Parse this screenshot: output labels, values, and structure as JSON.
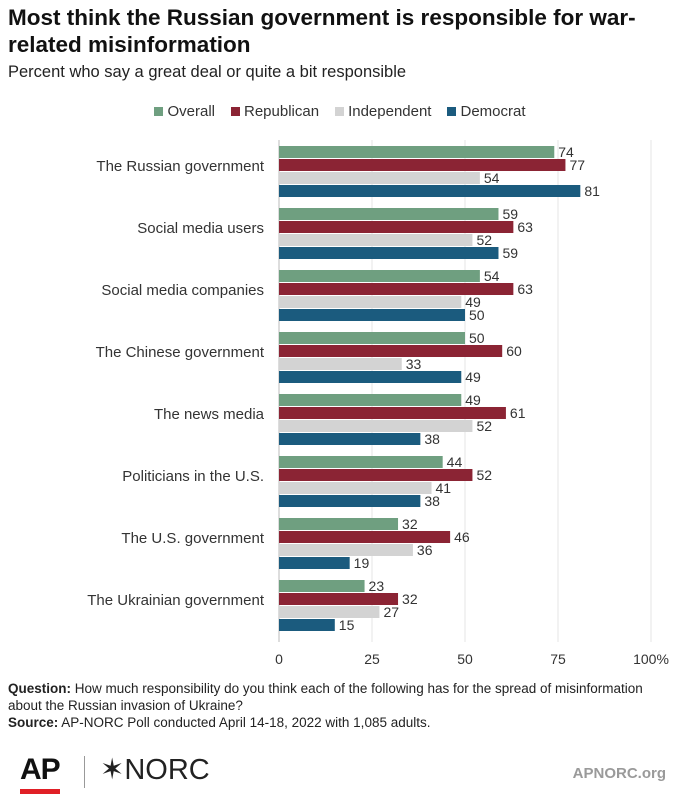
{
  "header": {
    "title": "Most think the Russian government is responsible for war-related misinformation",
    "subtitle": "Percent who say a great deal or quite a bit responsible"
  },
  "notes": {
    "question_label": "Question:",
    "question_text": "How much responsibility do you think each of the following has for the spread of misinformation about the Russian invasion of Ukraine?",
    "source_label": "Source:",
    "source_text": "AP-NORC Poll conducted April 14-18, 2022 with 1,085 adults."
  },
  "footer": {
    "ap_logo": "AP",
    "norc_logo": "NORC",
    "site": "APNORC.org"
  },
  "chart_data": {
    "type": "bar",
    "orientation": "horizontal",
    "title": "Most think the Russian government is responsible for war-related misinformation",
    "subtitle": "Percent who say a great deal or quite a bit responsible",
    "categories": [
      "The Russian government",
      "Social media users",
      "Social media companies",
      "The Chinese government",
      "The news media",
      "Politicians in the U.S.",
      "The U.S. government",
      "The Ukrainian government"
    ],
    "series": [
      {
        "name": "Overall",
        "color": "#6f9f80",
        "values": [
          74,
          59,
          54,
          50,
          49,
          44,
          32,
          23
        ]
      },
      {
        "name": "Republican",
        "color": "#8b2434",
        "values": [
          77,
          63,
          63,
          60,
          61,
          52,
          46,
          32
        ]
      },
      {
        "name": "Independent",
        "color": "#d3d3d3",
        "values": [
          54,
          52,
          49,
          33,
          52,
          41,
          36,
          27
        ]
      },
      {
        "name": "Democrat",
        "color": "#1b5b7e",
        "values": [
          81,
          59,
          50,
          49,
          38,
          38,
          19,
          15
        ]
      }
    ],
    "xlim": [
      0,
      100
    ],
    "xticks": [
      "0",
      "25",
      "50",
      "75",
      "100%"
    ],
    "xtick_values": [
      0,
      25,
      50,
      75,
      100
    ],
    "grid": true,
    "legend": "top-center"
  }
}
